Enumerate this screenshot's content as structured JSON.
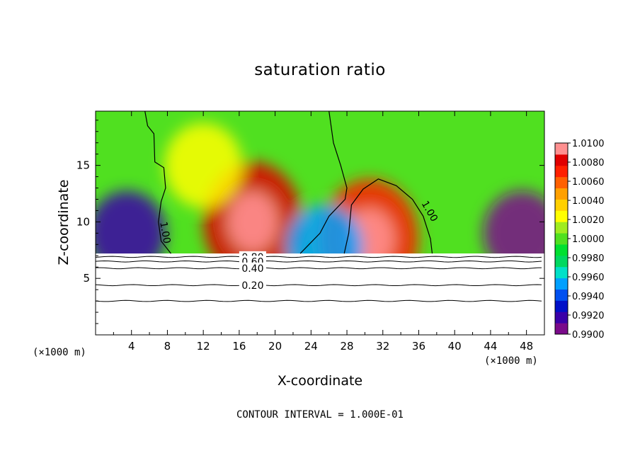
{
  "chart_data": {
    "type": "heatmap",
    "title": "saturation ratio",
    "xlabel": "X-coordinate",
    "ylabel": "Z-coordinate",
    "x_unit_left": "(×1000 m)",
    "x_unit_right": "(×1000 m)",
    "footer": "CONTOUR INTERVAL = 1.000E-01",
    "xlim": [
      0,
      50
    ],
    "ylim": [
      0,
      19.8
    ],
    "xticks": [
      4,
      8,
      12,
      16,
      20,
      24,
      28,
      32,
      36,
      40,
      44,
      48
    ],
    "xtick_labels": [
      "4",
      "8",
      "12",
      "16",
      "20",
      "24",
      "28",
      "32",
      "36",
      "40",
      "44",
      "48"
    ],
    "yticks": [
      5,
      10,
      15
    ],
    "ytick_labels": [
      "5",
      "10",
      "15"
    ],
    "colorbar": {
      "min": 0.99,
      "max": 1.01,
      "labels": [
        "1.0100",
        "1.0080",
        "1.0060",
        "1.0040",
        "1.0020",
        "1.0000",
        "0.9980",
        "0.9960",
        "0.9940",
        "0.9920",
        "0.9900"
      ],
      "label_values": [
        1.01,
        1.008,
        1.006,
        1.004,
        1.002,
        1.0,
        0.998,
        0.996,
        0.994,
        0.992,
        0.99
      ],
      "colors": [
        "#7a0a8a",
        "#3a00a8",
        "#0010c8",
        "#0050f0",
        "#00a0ff",
        "#00e0c8",
        "#00d860",
        "#00e030",
        "#50e020",
        "#a0ec20",
        "#ffff00",
        "#ffd000",
        "#ffa000",
        "#ff6000",
        "#ff2000",
        "#e00000",
        "#ff9090"
      ]
    },
    "surface_height": 7.2,
    "contour_lines_below_surface": [
      {
        "level": "0.80",
        "z": 6.9
      },
      {
        "level": "0.60",
        "z": 6.5
      },
      {
        "level": "0.40",
        "z": 5.9
      },
      {
        "level": "0.20",
        "z": 4.4
      },
      {
        "level": "",
        "z": 3.0
      }
    ],
    "contour_labels": [
      "1.00",
      "1.00",
      "0.80",
      "0.60",
      "0.40",
      "0.20"
    ],
    "field_features": [
      {
        "x": 17.5,
        "z": 10.0,
        "value": 1.008
      },
      {
        "x": 30.5,
        "z": 8.5,
        "value": 1.007
      },
      {
        "x": 12.0,
        "z": 15.0,
        "value": 1.002
      },
      {
        "x": 3.5,
        "z": 9.0,
        "value": 0.992
      },
      {
        "x": 47.5,
        "z": 9.0,
        "value": 0.991
      },
      {
        "x": 25.5,
        "z": 7.8,
        "value": 0.995
      }
    ]
  }
}
